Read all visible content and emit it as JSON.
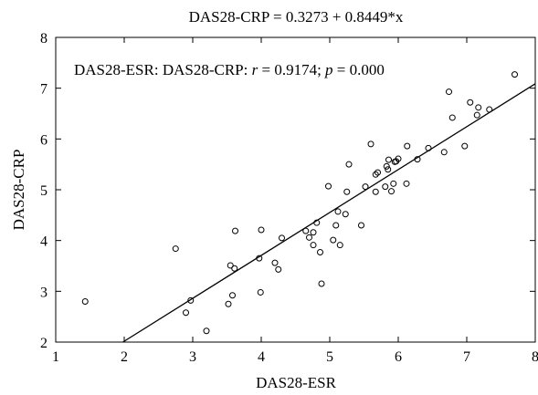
{
  "chart_data": {
    "type": "scatter",
    "title": "DAS28-CRP = 0.3273 + 0.8449*x",
    "xlabel": "DAS28-ESR",
    "ylabel": "DAS28-CRP",
    "xlim": [
      1,
      8
    ],
    "ylim": [
      2,
      8
    ],
    "xticks": [
      1,
      2,
      3,
      4,
      5,
      6,
      7,
      8
    ],
    "yticks": [
      2,
      3,
      4,
      5,
      6,
      7,
      8
    ],
    "grid": false,
    "annotation": {
      "prefix": "DAS28-ESR: DAS28-CRP: ",
      "r_symbol": "r",
      "r_value": " = 0.9174; ",
      "p_symbol": "p",
      "p_value": " = 0.000"
    },
    "fit_line": {
      "intercept": 0.3273,
      "slope": 0.8449,
      "x_range": [
        1.98,
        8.0
      ]
    },
    "points": [
      [
        1.43,
        2.8
      ],
      [
        2.75,
        3.84
      ],
      [
        2.9,
        2.58
      ],
      [
        2.97,
        2.82
      ],
      [
        3.2,
        2.22
      ],
      [
        3.52,
        2.75
      ],
      [
        3.55,
        3.51
      ],
      [
        3.58,
        2.92
      ],
      [
        3.61,
        3.45
      ],
      [
        3.62,
        4.19
      ],
      [
        3.97,
        3.65
      ],
      [
        3.99,
        2.98
      ],
      [
        4.0,
        4.21
      ],
      [
        4.2,
        3.56
      ],
      [
        4.25,
        3.43
      ],
      [
        4.3,
        4.05
      ],
      [
        4.65,
        4.19
      ],
      [
        4.7,
        4.06
      ],
      [
        4.76,
        4.16
      ],
      [
        4.76,
        3.91
      ],
      [
        4.81,
        4.35
      ],
      [
        4.86,
        3.77
      ],
      [
        4.88,
        3.15
      ],
      [
        4.98,
        5.07
      ],
      [
        5.05,
        4.01
      ],
      [
        5.09,
        4.3
      ],
      [
        5.12,
        4.57
      ],
      [
        5.15,
        3.91
      ],
      [
        5.23,
        4.52
      ],
      [
        5.25,
        4.96
      ],
      [
        5.28,
        5.5
      ],
      [
        5.46,
        4.3
      ],
      [
        5.52,
        5.06
      ],
      [
        5.6,
        5.9
      ],
      [
        5.67,
        4.96
      ],
      [
        5.67,
        5.3
      ],
      [
        5.7,
        5.34
      ],
      [
        5.81,
        5.06
      ],
      [
        5.83,
        5.46
      ],
      [
        5.85,
        5.4
      ],
      [
        5.86,
        5.59
      ],
      [
        5.9,
        4.97
      ],
      [
        5.93,
        5.12
      ],
      [
        5.95,
        5.55
      ],
      [
        5.97,
        5.56
      ],
      [
        6.0,
        5.61
      ],
      [
        6.12,
        5.12
      ],
      [
        6.13,
        5.86
      ],
      [
        6.28,
        5.6
      ],
      [
        6.44,
        5.82
      ],
      [
        6.67,
        5.74
      ],
      [
        6.74,
        6.93
      ],
      [
        6.79,
        6.42
      ],
      [
        6.97,
        5.86
      ],
      [
        7.05,
        6.72
      ],
      [
        7.15,
        6.47
      ],
      [
        7.17,
        6.62
      ],
      [
        7.33,
        6.58
      ],
      [
        7.7,
        7.27
      ]
    ]
  }
}
